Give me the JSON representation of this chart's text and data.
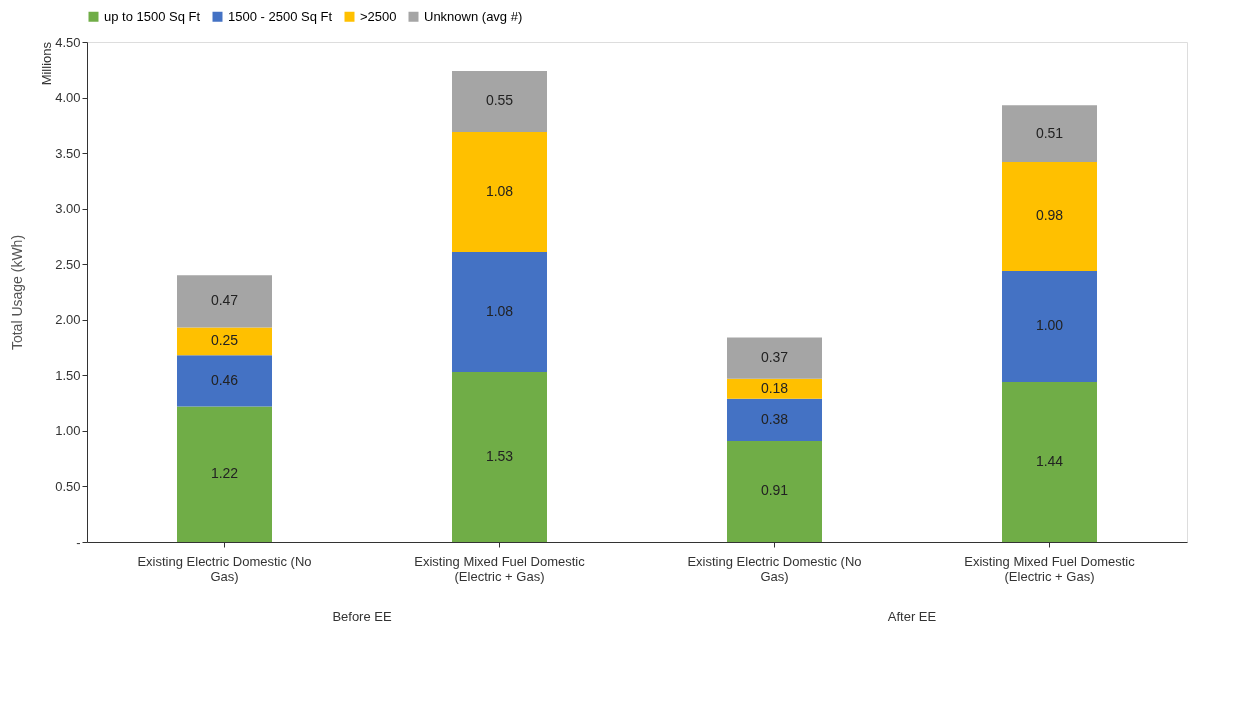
{
  "chart_data": {
    "type": "bar",
    "stacked": true,
    "ylabel": "Total Usage (kWh)",
    "categories": [
      "Existing Electric Domestic (No Gas)",
      "Existing Mixed Fuel Domestic (Electric + Gas)",
      "Existing Electric Domestic (No Gas)",
      "Existing Mixed Fuel Domestic (Electric + Gas)"
    ],
    "series": [
      {
        "name": "up to 1500 Sq Ft",
        "color": "#70ad47",
        "values": [
          1.22,
          1.53,
          0.91,
          1.44
        ],
        "value_labels": [
          "1.22",
          "1.53",
          "0.91",
          "1.44"
        ]
      },
      {
        "name": "1500 - 2500 Sq Ft",
        "color": "#4472c4",
        "values": [
          0.46,
          1.08,
          0.38,
          1.0
        ],
        "value_labels": [
          "0.46",
          "1.08",
          "0.38",
          "1.00"
        ]
      },
      {
        "name": ">2500",
        "color": "#ffc000",
        "values": [
          0.25,
          1.08,
          0.18,
          0.98
        ],
        "value_labels": [
          "0.25",
          "1.08",
          "0.18",
          "0.98"
        ]
      },
      {
        "name": "Unknown (avg #)",
        "color": "#a5a5a5",
        "values": [
          0.47,
          0.55,
          0.37,
          0.51
        ],
        "value_labels": [
          "0.47",
          "0.55",
          "0.37",
          "0.51"
        ]
      }
    ],
    "ylim": [
      0,
      4.5
    ],
    "yticks": [
      {
        "value": 0,
        "label": "-"
      },
      {
        "value": 0.5,
        "label": "0.50"
      },
      {
        "value": 1,
        "label": "1.00"
      },
      {
        "value": 1.5,
        "label": "1.50"
      },
      {
        "value": 2,
        "label": "2.00"
      },
      {
        "value": 2.5,
        "label": "2.50"
      },
      {
        "value": 3,
        "label": "3.00"
      },
      {
        "value": 3.5,
        "label": "3.50"
      },
      {
        "value": 4,
        "label": "4.00"
      },
      {
        "value": 4.5,
        "label": "4.50"
      }
    ],
    "grid": false,
    "legend": "top",
    "annotations": [
      "Millions",
      "Before EE",
      "After EE"
    ]
  }
}
